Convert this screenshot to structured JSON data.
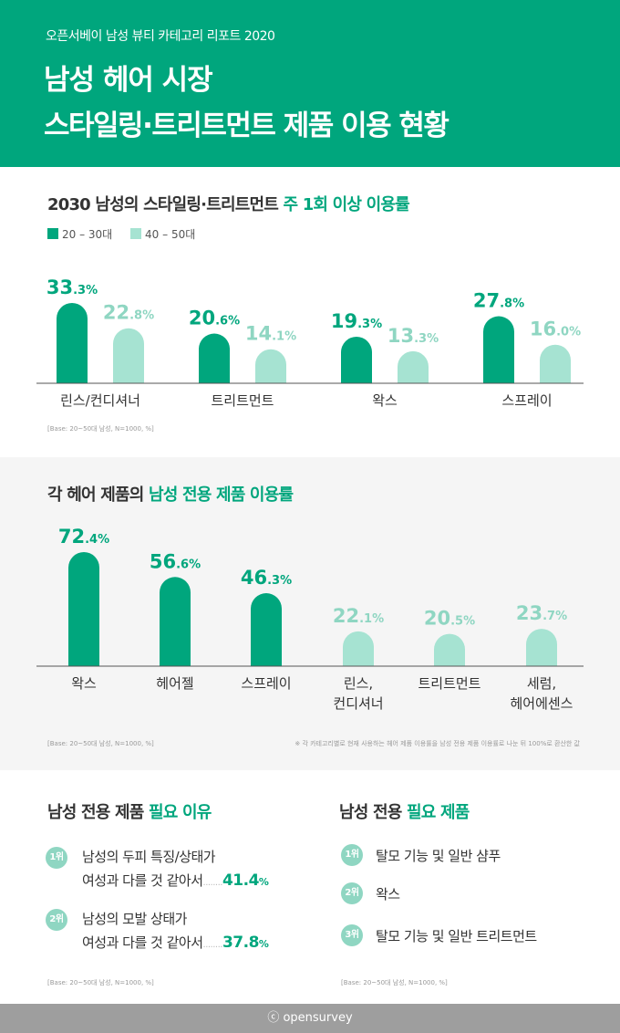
{
  "header": {
    "subtitle": "오픈서베이 남성 뷰티 카테고리 리포트 2020",
    "title_line1": "남성 헤어 시장",
    "title_line2": "스타일링·트리트먼트 제품 이용 현황"
  },
  "colors": {
    "brand": "#00a67d",
    "light": "#a6e3d2",
    "rank": "#8fd6c2"
  },
  "section1": {
    "title_prefix": "2030 남성의 스타일링·트리트먼트 ",
    "title_accent": "주 1회 이상 이용률",
    "base": "[Base: 20~50대 남성, N=1000, %]"
  },
  "section2": {
    "title_prefix": "각 헤어 제품의 ",
    "title_accent": "남성 전용 제품 이용률",
    "base": "[Base: 20~50대 남성, N=1000, %]",
    "note": "※ 각 카테고리별로 현재 사용하는 헤어 제품 이용률을 남성 전용 제품 이용률로 나눈 뒤 100%로 환산한 값"
  },
  "chart_data": [
    {
      "type": "bar",
      "title": "2030 남성의 스타일링·트리트먼트 주 1회 이상 이용률",
      "categories": [
        "린스/컨디셔너",
        "트리트먼트",
        "왁스",
        "스프레이"
      ],
      "series": [
        {
          "name": "20 – 30대",
          "values": [
            33.3,
            20.6,
            19.3,
            27.8
          ]
        },
        {
          "name": "40 – 50대",
          "values": [
            22.8,
            14.1,
            13.3,
            16.0
          ]
        }
      ],
      "unit": "%",
      "legend": "top-left"
    },
    {
      "type": "bar",
      "title": "각 헤어 제품의 남성 전용 제품 이용률",
      "categories": [
        [
          "왁스"
        ],
        [
          "헤어젤"
        ],
        [
          "스프레이"
        ],
        [
          "린스,",
          "컨디셔너"
        ],
        [
          "트리트먼트"
        ],
        [
          "세럼,",
          "헤어에센스"
        ]
      ],
      "values": [
        72.4,
        56.6,
        46.3,
        22.1,
        20.5,
        23.7
      ],
      "highlight": [
        true,
        true,
        true,
        false,
        false,
        false
      ],
      "unit": "%"
    }
  ],
  "reasons": {
    "title_prefix": "남성 전용 제품 ",
    "title_accent": "필요 이유",
    "items": [
      {
        "rank": "1위",
        "line1": "남성의 두피 특징/상태가",
        "line2": "여성과 다를 것 같아서",
        "dots": "........",
        "value": "41.4",
        "unit": "%"
      },
      {
        "rank": "2위",
        "line1": "남성의 모발 상태가",
        "line2": "여성과 다를 것 같아서",
        "dots": "........",
        "value": "37.8",
        "unit": "%"
      }
    ],
    "base": "[Base: 20~50대 남성, N=1000, %]"
  },
  "products": {
    "title_prefix": "남성 전용 ",
    "title_accent": "필요 제품",
    "items": [
      {
        "rank": "1위",
        "label": "탈모 기능 및 일반 샴푸"
      },
      {
        "rank": "2위",
        "label": "왁스"
      },
      {
        "rank": "3위",
        "label": "탈모 기능 및 일반 트리트먼트"
      }
    ],
    "base": "[Base: 20~50대 남성, N=1000, %]"
  },
  "footer": {
    "brand": "ⓒ opensurvey"
  }
}
